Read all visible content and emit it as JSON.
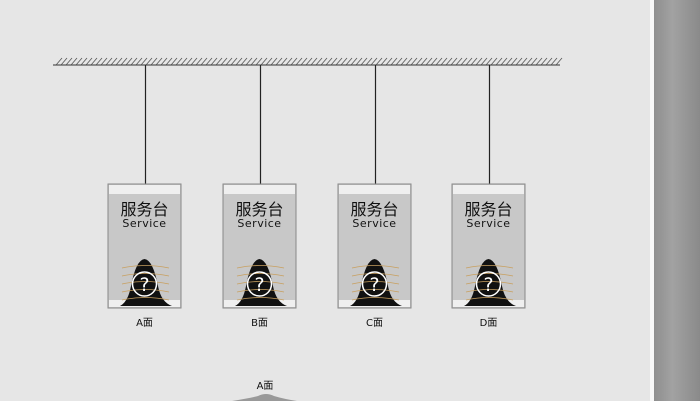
{
  "signs": [
    {
      "title_cn": "服务台",
      "title_en": "Service",
      "icon": "question-mark-icon",
      "label": "A面"
    },
    {
      "title_cn": "服务台",
      "title_en": "Service",
      "icon": "question-mark-icon",
      "label": "B面"
    },
    {
      "title_cn": "服务台",
      "title_en": "Service",
      "icon": "question-mark-icon",
      "label": "C面"
    },
    {
      "title_cn": "服务台",
      "title_en": "Service",
      "icon": "question-mark-icon",
      "label": "D面"
    }
  ],
  "bottom_view": {
    "label": "A面"
  },
  "colors": {
    "background": "#e6e6e6",
    "sign_face": "#c8c8c8",
    "mound": "#111111",
    "stripe": "#c8a060"
  }
}
